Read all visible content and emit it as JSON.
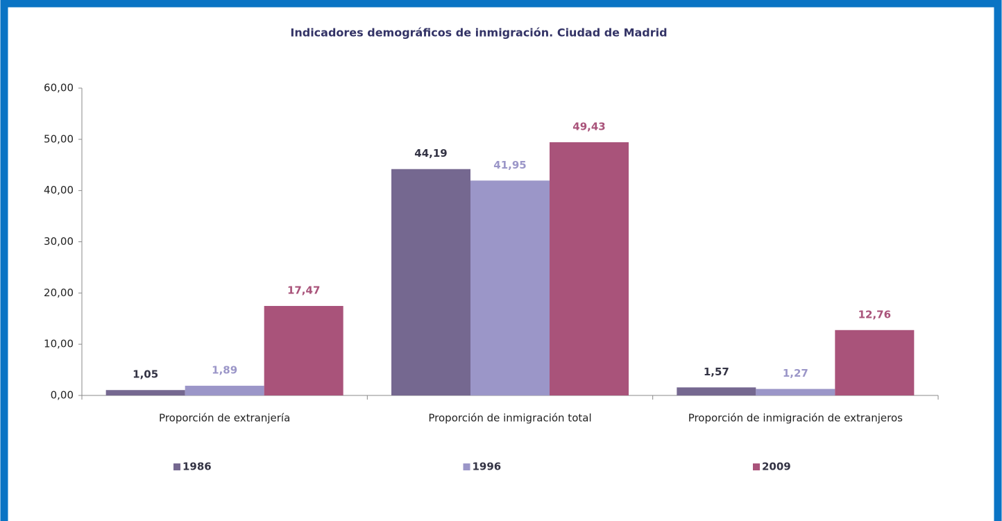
{
  "chart_data": {
    "type": "bar",
    "title": "Indicadores demográficos de inmigración. Ciudad de Madrid",
    "categories": [
      "Proporción de extranjería",
      "Proporción de inmigración total",
      "Proporción de inmigración de extranjeros"
    ],
    "series": [
      {
        "name": "1986",
        "color": "#756890",
        "label_color": "#333344",
        "values": [
          1.05,
          44.19,
          1.57
        ],
        "value_labels": [
          "1,05",
          "44,19",
          "1,57"
        ]
      },
      {
        "name": "1996",
        "color": "#9b96c8",
        "label_color": "#9b96c8",
        "values": [
          1.89,
          41.95,
          1.27
        ],
        "value_labels": [
          "1,89",
          "41,95",
          "1,27"
        ]
      },
      {
        "name": "2009",
        "color": "#a9537a",
        "label_color": "#a9537a",
        "values": [
          17.47,
          49.43,
          12.76
        ],
        "value_labels": [
          "17,47",
          "49,43",
          "12,76"
        ]
      }
    ],
    "ylim": [
      0,
      60
    ],
    "yticks": [
      {
        "value": 0,
        "label": "0,00"
      },
      {
        "value": 10,
        "label": "10,00"
      },
      {
        "value": 20,
        "label": "20,00"
      },
      {
        "value": 30,
        "label": "30,00"
      },
      {
        "value": 40,
        "label": "40,00"
      },
      {
        "value": 50,
        "label": "50,00"
      },
      {
        "value": 60,
        "label": "60,00"
      }
    ],
    "grid": false,
    "legend": "bottom"
  }
}
